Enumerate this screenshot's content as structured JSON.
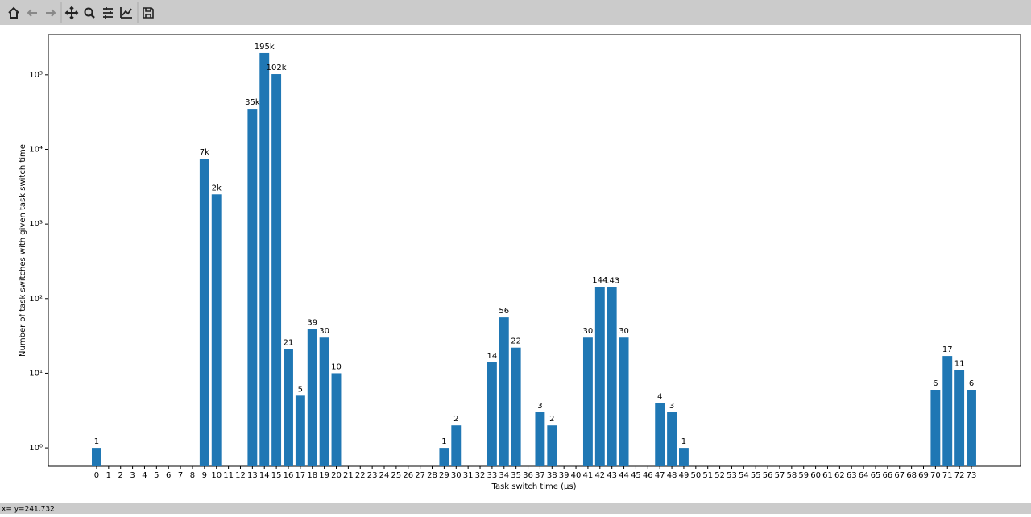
{
  "chart_data": {
    "type": "bar",
    "x_label": "Task switch time (µs)",
    "y_label": "Number of task switches with given task switch time",
    "x": [
      0,
      1,
      2,
      3,
      4,
      5,
      6,
      7,
      8,
      9,
      10,
      11,
      12,
      13,
      14,
      15,
      16,
      17,
      18,
      19,
      20,
      21,
      22,
      23,
      24,
      25,
      26,
      27,
      28,
      29,
      30,
      31,
      32,
      33,
      34,
      35,
      36,
      37,
      38,
      39,
      40,
      41,
      42,
      43,
      44,
      45,
      46,
      47,
      48,
      49,
      50,
      51,
      52,
      53,
      54,
      55,
      56,
      57,
      58,
      59,
      60,
      61,
      62,
      63,
      64,
      65,
      66,
      67,
      68,
      69,
      70,
      71,
      72,
      73
    ],
    "values": [
      1,
      null,
      null,
      null,
      null,
      null,
      null,
      null,
      null,
      7499,
      2499,
      null,
      null,
      35000,
      195000,
      102000,
      21,
      5,
      39,
      30,
      10,
      null,
      null,
      null,
      null,
      null,
      null,
      null,
      null,
      1,
      2,
      null,
      null,
      14,
      56,
      22,
      null,
      3,
      2,
      null,
      null,
      30,
      144,
      143,
      30,
      null,
      null,
      4,
      3,
      1,
      null,
      null,
      null,
      null,
      null,
      null,
      null,
      null,
      null,
      null,
      null,
      null,
      null,
      null,
      null,
      null,
      null,
      null,
      null,
      null,
      6,
      17,
      11,
      6
    ],
    "value_labels": [
      "1",
      null,
      null,
      null,
      null,
      null,
      null,
      null,
      null,
      "7k",
      "2k",
      null,
      null,
      "35k",
      "195k",
      "102k",
      "21",
      "5",
      "39",
      "30",
      "10",
      null,
      null,
      null,
      null,
      null,
      null,
      null,
      null,
      "1",
      "2",
      null,
      null,
      "14",
      "56",
      "22",
      null,
      "3",
      "2",
      null,
      null,
      "30",
      "144",
      "143",
      "30",
      null,
      null,
      "4",
      "3",
      "1",
      null,
      null,
      null,
      null,
      null,
      null,
      null,
      null,
      null,
      null,
      null,
      null,
      null,
      null,
      null,
      null,
      null,
      null,
      null,
      null,
      "6",
      "17",
      "11",
      "6"
    ],
    "color": "#1f77b4",
    "xlim": [
      -4.03,
      77.1
    ],
    "ylim": [
      0.566,
      345000
    ],
    "log_y": true,
    "yticks": [
      {
        "value": 1,
        "label": "10⁰"
      },
      {
        "value": 10,
        "label": "10¹"
      },
      {
        "value": 100,
        "label": "10²"
      },
      {
        "value": 1000,
        "label": "10³"
      },
      {
        "value": 10000,
        "label": "10⁴"
      },
      {
        "value": 100000,
        "label": "10⁵"
      }
    ]
  },
  "status_bar": "x= y=241.732"
}
